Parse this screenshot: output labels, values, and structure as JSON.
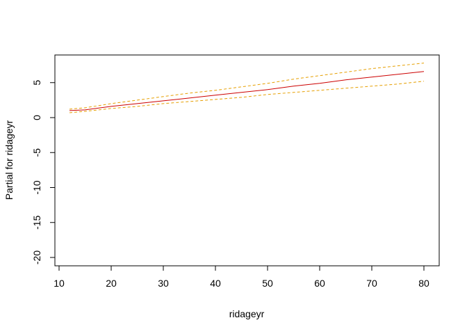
{
  "chart_data": {
    "type": "line",
    "title": "",
    "xlabel": "ridageyr",
    "ylabel": "Partial for ridageyr",
    "xlim": [
      10,
      81
    ],
    "ylim": [
      -21,
      9
    ],
    "x_ticks": [
      10,
      20,
      30,
      40,
      50,
      60,
      70,
      80
    ],
    "y_ticks": [
      5,
      0,
      -5,
      -10,
      -15,
      -20
    ],
    "grid": false,
    "legend": "none",
    "series": [
      {
        "color": "#CC0000",
        "style": "solid",
        "x": [
          12,
          15,
          20,
          25,
          30,
          35,
          40,
          45,
          50,
          55,
          60,
          65,
          70,
          75,
          80
        ],
        "y": [
          1.0,
          1.1,
          1.6,
          2.0,
          2.4,
          2.8,
          3.2,
          3.6,
          4.0,
          4.5,
          4.9,
          5.4,
          5.8,
          6.2,
          6.6
        ]
      },
      {
        "color": "#E69F00",
        "style": "dashed",
        "x": [
          12,
          15,
          20,
          25,
          30,
          35,
          40,
          45,
          50,
          55,
          60,
          65,
          70,
          75,
          80
        ],
        "y": [
          1.2,
          1.4,
          2.0,
          2.5,
          3.0,
          3.5,
          3.9,
          4.4,
          4.9,
          5.5,
          6.0,
          6.5,
          7.0,
          7.4,
          7.8
        ]
      },
      {
        "color": "#E69F00",
        "style": "dashed",
        "x": [
          12,
          15,
          20,
          25,
          30,
          35,
          40,
          45,
          50,
          55,
          60,
          65,
          70,
          75,
          80
        ],
        "y": [
          0.7,
          0.9,
          1.3,
          1.6,
          2.0,
          2.3,
          2.6,
          2.9,
          3.3,
          3.6,
          3.9,
          4.2,
          4.5,
          4.8,
          5.2
        ]
      }
    ]
  }
}
